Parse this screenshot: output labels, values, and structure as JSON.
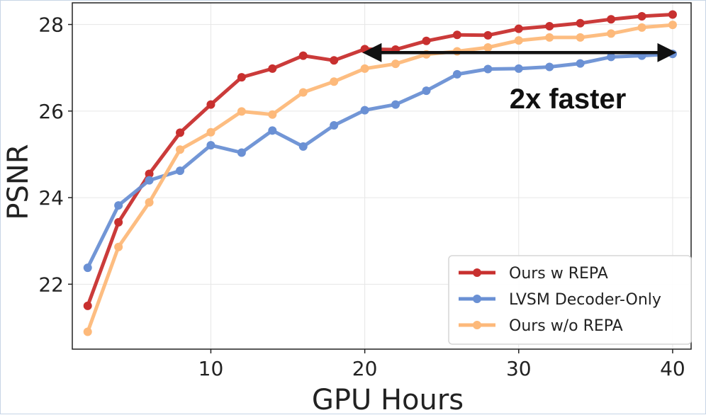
{
  "chart_data": {
    "type": "line",
    "title": "",
    "xlabel": "GPU Hours",
    "ylabel": "PSNR",
    "xlim": [
      1.0,
      41.2
    ],
    "ylim": [
      20.5,
      28.5
    ],
    "xticks": [
      10,
      20,
      30,
      40
    ],
    "yticks": [
      22,
      24,
      26,
      28
    ],
    "x_tick_labels": [
      "10",
      "20",
      "30",
      "40"
    ],
    "y_tick_labels": [
      "22",
      "24",
      "26",
      "28"
    ],
    "grid": true,
    "legend_position": "lower-right",
    "x": [
      2,
      4,
      6,
      8,
      10,
      12,
      14,
      16,
      18,
      20,
      22,
      24,
      26,
      28,
      30,
      32,
      34,
      36,
      38,
      40
    ],
    "series": [
      {
        "name": "Ours w REPA",
        "color": "#c8302f",
        "values": [
          21.5,
          23.43,
          24.55,
          25.5,
          26.15,
          26.78,
          26.98,
          27.28,
          27.17,
          27.43,
          27.42,
          27.62,
          27.76,
          27.75,
          27.9,
          27.96,
          28.03,
          28.12,
          28.19,
          28.23
        ]
      },
      {
        "name": "LVSM Decoder-Only",
        "color": "#6a90d4",
        "values": [
          22.38,
          23.82,
          24.4,
          24.62,
          25.21,
          25.04,
          25.55,
          25.18,
          25.67,
          26.02,
          26.15,
          26.47,
          26.85,
          26.97,
          26.98,
          27.02,
          27.1,
          27.25,
          27.28,
          27.32
        ]
      },
      {
        "name": "Ours w/o REPA",
        "color": "#fdb97a",
        "values": [
          20.9,
          22.86,
          23.89,
          25.11,
          25.51,
          25.99,
          25.92,
          26.43,
          26.68,
          26.98,
          27.09,
          27.31,
          27.38,
          27.47,
          27.63,
          27.7,
          27.7,
          27.79,
          27.93,
          27.99
        ]
      }
    ],
    "annotations": [
      {
        "text": "2x faster",
        "arrow_from_x": 20.1,
        "arrow_to_x": 40,
        "arrow_y": 27.35
      }
    ]
  }
}
